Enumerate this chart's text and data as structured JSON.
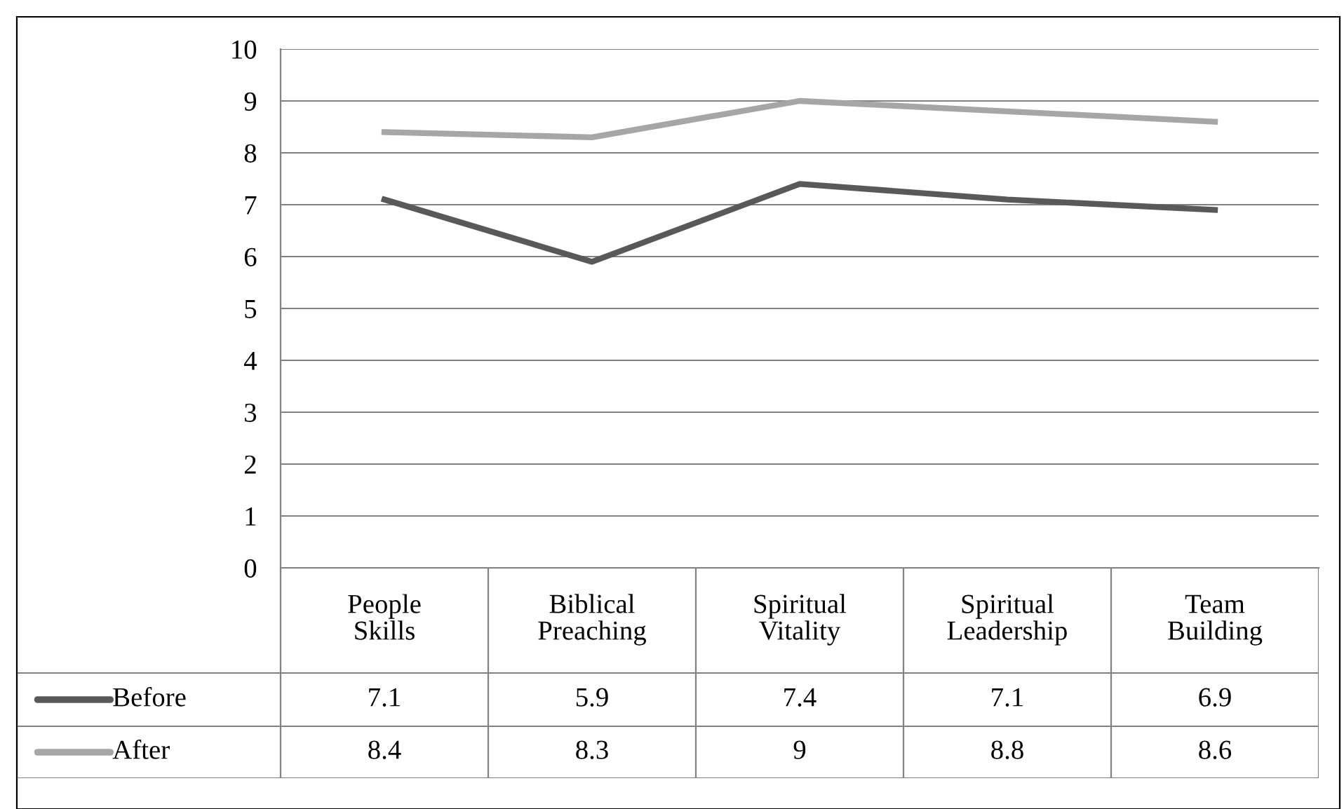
{
  "chart_data": {
    "type": "line",
    "categories": [
      "People Skills",
      "Biblical Preaching",
      "Spiritual Vitality",
      "Spiritual Leadership",
      "Team Building"
    ],
    "series": [
      {
        "name": "Before",
        "color": "#595959",
        "values": [
          7.1,
          5.9,
          7.4,
          7.1,
          6.9
        ]
      },
      {
        "name": "After",
        "color": "#a6a6a6",
        "values": [
          8.4,
          8.3,
          9,
          8.8,
          8.6
        ]
      }
    ],
    "ylim": [
      0,
      10
    ],
    "yticks": [
      0,
      1,
      2,
      3,
      4,
      5,
      6,
      7,
      8,
      9,
      10
    ],
    "grid": "y",
    "legend": "bottom",
    "data_labels": true,
    "marker": "none",
    "line_style": "solid"
  }
}
